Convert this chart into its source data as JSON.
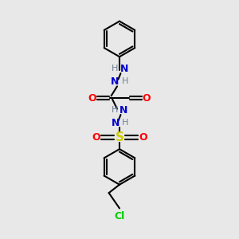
{
  "bg_color": "#e8e8e8",
  "bond_color": "#000000",
  "n_color": "#0000cd",
  "o_color": "#ff0000",
  "s_color": "#cccc00",
  "cl_color": "#00cc00",
  "h_color": "#708090",
  "lw": 1.5,
  "figsize": [
    3.0,
    3.0
  ],
  "dpi": 100,
  "xlim": [
    0,
    10
  ],
  "ylim": [
    0,
    10
  ]
}
